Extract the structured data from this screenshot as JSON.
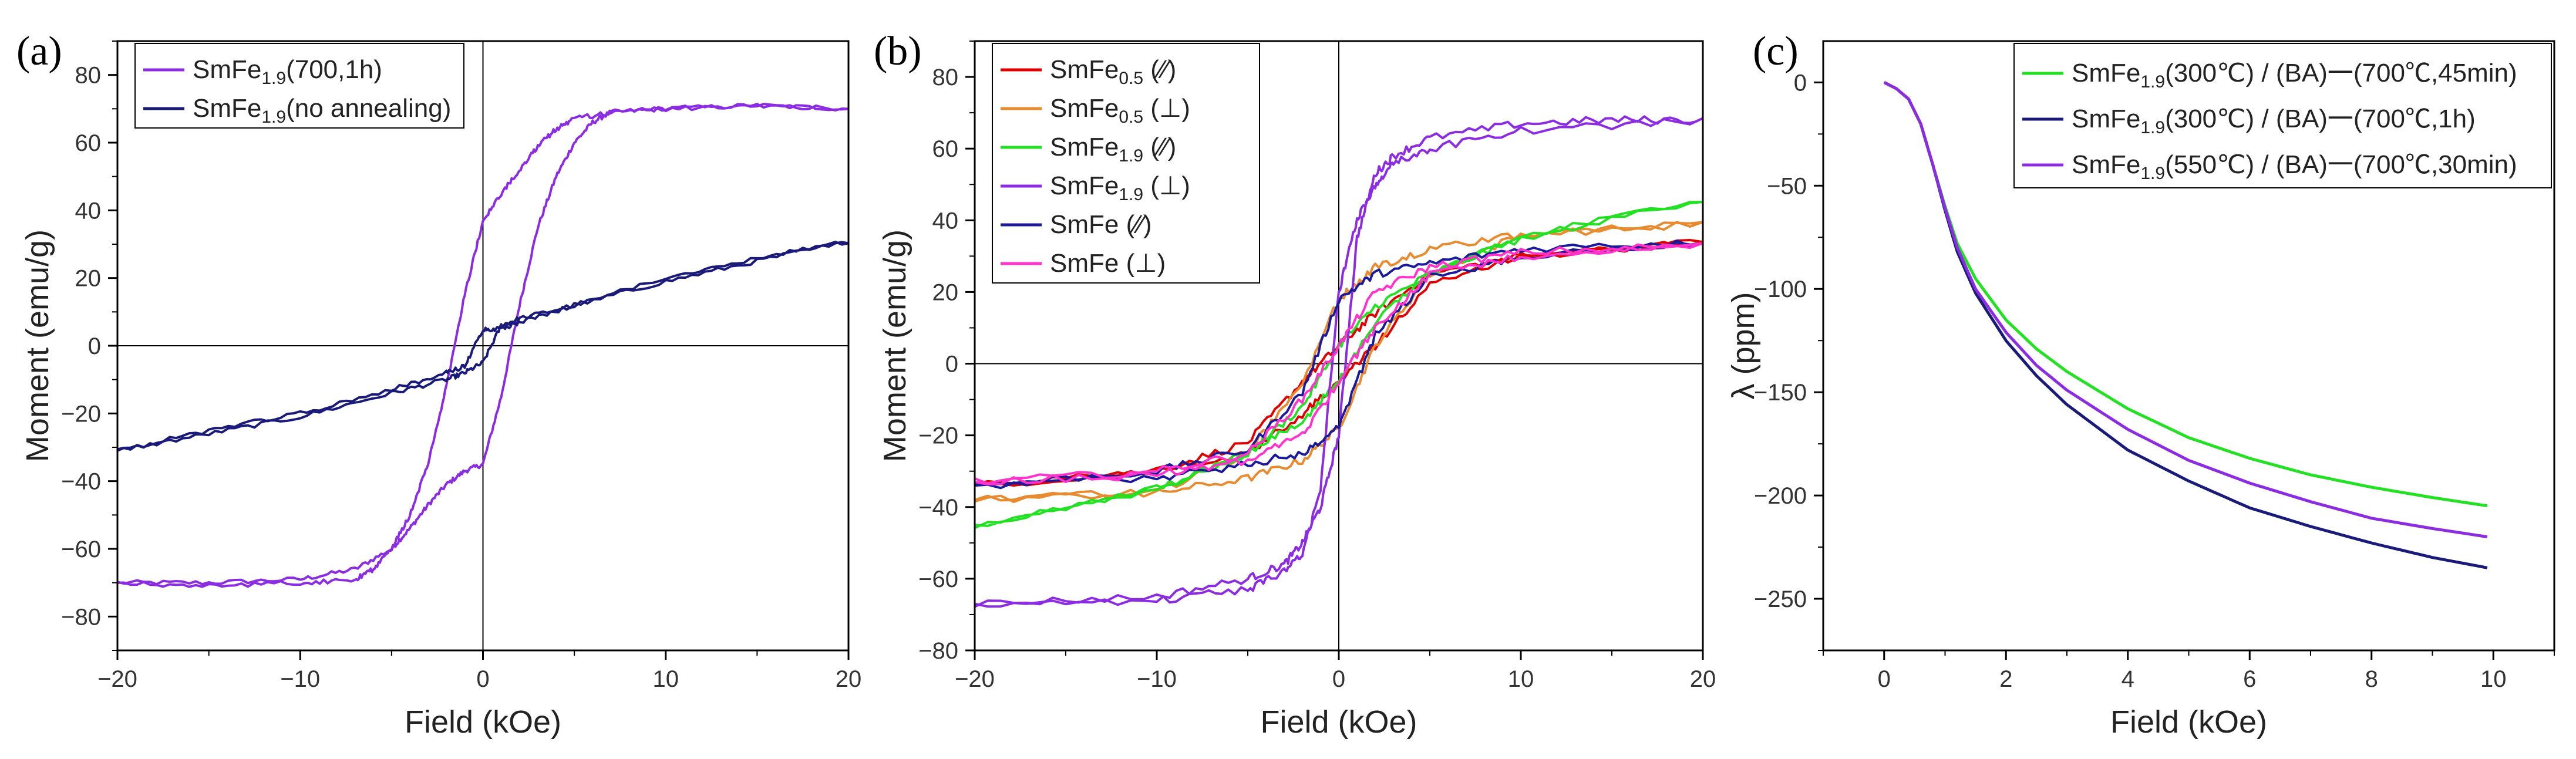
{
  "chart_data": [
    {
      "type": "line",
      "panel_label": "(a)",
      "xlabel": "Field (kOe)",
      "ylabel": "Moment (emu/g)",
      "xlim": [
        -20,
        20
      ],
      "ylim": [
        -90,
        90
      ],
      "xticks": [
        -20,
        -10,
        0,
        10,
        20
      ],
      "xtick_labels": [
        "−20",
        "−10",
        "0",
        "10",
        "20"
      ],
      "yticks": [
        -80,
        -60,
        -40,
        -20,
        0,
        20,
        40,
        60,
        80
      ],
      "ytick_labels": [
        "−80",
        "−60",
        "−40",
        "−20",
        "0",
        "20",
        "40",
        "60",
        "80"
      ],
      "zero_lines": true,
      "legend_position": "top-left",
      "series": [
        {
          "base": "SmFe",
          "sub": "1.9",
          "suffix": "(700,1h)",
          "color": "#8B2BE2",
          "x": [
            -20,
            -15,
            -10,
            -7,
            -5,
            -4,
            -3,
            -2,
            -1,
            0,
            1,
            2,
            3,
            4,
            5,
            6,
            7,
            10,
            15,
            20,
            15,
            10,
            7,
            5,
            4,
            3,
            2,
            1,
            0,
            -1,
            -2,
            -3,
            -4,
            -5,
            -6,
            -7,
            -10,
            -15,
            -20
          ],
          "y": [
            -70,
            -70,
            -69,
            -66,
            -60,
            -54,
            -47,
            -41,
            -37,
            -35,
            -15,
            12,
            35,
            50,
            60,
            66,
            69,
            70,
            71,
            70,
            71,
            70,
            69,
            67,
            64,
            59,
            52,
            45,
            37,
            15,
            -12,
            -35,
            -50,
            -60,
            -66,
            -69,
            -70,
            -71,
            -70
          ]
        },
        {
          "base": "SmFe",
          "sub": "1.9",
          "suffix": "(no annealing)",
          "color": "#1A1A7A",
          "x": [
            -20,
            -15,
            -10,
            -5,
            -2,
            -1,
            0,
            1,
            2,
            5,
            10,
            15,
            20,
            15,
            10,
            5,
            2,
            1,
            0,
            -1,
            -2,
            -5,
            -10,
            -15,
            -20
          ],
          "y": [
            -31,
            -26,
            -21,
            -14,
            -10,
            -8,
            -5,
            6,
            8,
            12,
            19,
            25,
            31,
            26,
            20,
            12,
            7,
            5,
            5,
            -6,
            -8,
            -13,
            -20,
            -25,
            -31
          ]
        }
      ]
    },
    {
      "type": "line",
      "panel_label": "(b)",
      "xlabel": "Field (kOe)",
      "ylabel": "Moment (emu/g)",
      "xlim": [
        -20,
        20
      ],
      "ylim": [
        -80,
        90
      ],
      "xticks": [
        -20,
        -10,
        0,
        10,
        20
      ],
      "xtick_labels": [
        "−20",
        "−10",
        "0",
        "10",
        "20"
      ],
      "yticks": [
        -80,
        -60,
        -40,
        -20,
        0,
        20,
        40,
        60,
        80
      ],
      "ytick_labels": [
        "−80",
        "−60",
        "−40",
        "−20",
        "0",
        "20",
        "40",
        "60",
        "80"
      ],
      "zero_lines": true,
      "legend_position": "top-left",
      "series": [
        {
          "base": "SmFe",
          "sub": "0.5",
          "suffix": " (∕∕)",
          "color": "#E00000",
          "x": [
            -20,
            -10,
            -5,
            -2,
            0,
            2,
            5,
            10,
            20,
            10,
            5,
            2,
            0,
            -2,
            -5,
            -10,
            -20
          ],
          "y": [
            -34,
            -30,
            -22,
            -5,
            5,
            14,
            25,
            30,
            34,
            30,
            22,
            5,
            -5,
            -14,
            -25,
            -30,
            -34
          ]
        },
        {
          "base": "SmFe",
          "sub": "0.5",
          "suffix": " (⊥)",
          "color": "#E88A2E",
          "x": [
            -20,
            -10,
            -5,
            -2,
            0,
            2,
            5,
            10,
            20,
            10,
            5,
            2,
            0,
            -2,
            -5,
            -10,
            -20
          ],
          "y": [
            -38,
            -36,
            -32,
            -27,
            -18,
            5,
            25,
            36,
            39,
            36,
            32,
            27,
            18,
            -5,
            -25,
            -36,
            -38
          ]
        },
        {
          "base": "SmFe",
          "sub": "1.9",
          "suffix": " (∕∕)",
          "color": "#22E022",
          "x": [
            -20,
            -10,
            -5,
            -2,
            0,
            2,
            5,
            10,
            20,
            10,
            5,
            2,
            0,
            -2,
            -5,
            -10,
            -20
          ],
          "y": [
            -45,
            -35,
            -25,
            -12,
            5,
            16,
            25,
            35,
            46,
            35,
            25,
            12,
            -5,
            -16,
            -25,
            -35,
            -45
          ]
        },
        {
          "base": "SmFe",
          "sub": "1.9",
          "suffix": " (⊥)",
          "color": "#8B2BE2",
          "x": [
            -20,
            -10,
            -5,
            -3,
            -2,
            -1,
            0,
            1,
            2,
            3,
            5,
            10,
            15,
            20,
            10,
            5,
            3,
            2,
            1,
            0,
            -1,
            -2,
            -3,
            -5,
            -10,
            -20
          ],
          "y": [
            -67,
            -65,
            -60,
            -56,
            -50,
            -40,
            -20,
            35,
            53,
            58,
            63,
            67,
            68,
            68,
            65,
            60,
            56,
            50,
            40,
            20,
            -35,
            -53,
            -58,
            -63,
            -66,
            -67
          ]
        },
        {
          "base": "SmFe",
          "sub": "",
          "suffix": " (∕∕)",
          "color": "#1A1A9A",
          "x": [
            -20,
            -10,
            -5,
            -2,
            0,
            2,
            5,
            10,
            20,
            10,
            5,
            2,
            0,
            -2,
            -5,
            -10,
            -20
          ],
          "y": [
            -34,
            -30,
            -24,
            -8,
            18,
            25,
            28,
            32,
            34,
            30,
            24,
            8,
            -18,
            -25,
            -28,
            -32,
            -34
          ]
        },
        {
          "base": "SmFe",
          "sub": "",
          "suffix": " (⊥)",
          "color": "#FF33CC",
          "x": [
            -20,
            -10,
            -5,
            -2,
            0,
            2,
            5,
            10,
            20,
            10,
            5,
            2,
            0,
            -2,
            -5,
            -10,
            -20
          ],
          "y": [
            -33,
            -30,
            -25,
            -10,
            5,
            20,
            27,
            31,
            33,
            30,
            25,
            10,
            -5,
            -20,
            -27,
            -31,
            -33
          ]
        }
      ]
    },
    {
      "type": "line",
      "panel_label": "(c)",
      "xlabel": "Field (kOe)",
      "ylabel": "λ (ppm)",
      "xlim": [
        -1,
        11
      ],
      "ylim": [
        -275,
        20
      ],
      "xticks": [
        0,
        2,
        4,
        6,
        8,
        10
      ],
      "xtick_labels": [
        "0",
        "2",
        "4",
        "6",
        "8",
        "10"
      ],
      "yticks": [
        -250,
        -200,
        -150,
        -100,
        -50,
        0
      ],
      "ytick_labels": [
        "−250",
        "−200",
        "−150",
        "−100",
        "−50",
        "0"
      ],
      "zero_lines": false,
      "legend_position": "top-right",
      "series": [
        {
          "base": "SmFe",
          "sub": "1.9",
          "suffix": "(300℃) / (BA)一(700℃,45min)",
          "color": "#22E022",
          "x": [
            0,
            0.2,
            0.4,
            0.6,
            0.8,
            1.0,
            1.2,
            1.5,
            2,
            2.5,
            3,
            4,
            5,
            6,
            7,
            8,
            9,
            9.9
          ],
          "y": [
            0,
            -3,
            -8,
            -20,
            -40,
            -60,
            -78,
            -95,
            -115,
            -129,
            -140,
            -158,
            -172,
            -182,
            -190,
            -196,
            -201,
            -205
          ]
        },
        {
          "base": "SmFe",
          "sub": "1.9",
          "suffix": "(300℃) / (BA)一(700℃,1h)",
          "color": "#1A1A7A",
          "x": [
            0,
            0.2,
            0.4,
            0.6,
            0.8,
            1.0,
            1.2,
            1.5,
            2,
            2.5,
            3,
            4,
            5,
            6,
            7,
            8,
            9,
            9.9
          ],
          "y": [
            0,
            -3,
            -8,
            -20,
            -40,
            -62,
            -82,
            -102,
            -125,
            -142,
            -156,
            -178,
            -193,
            -206,
            -215,
            -223,
            -230,
            -235
          ]
        },
        {
          "base": "SmFe",
          "sub": "1.9",
          "suffix": "(550℃) / (BA)一(700℃,30min)",
          "color": "#8B2BE2",
          "x": [
            0,
            0.2,
            0.4,
            0.6,
            0.8,
            1.0,
            1.2,
            1.5,
            2,
            2.5,
            3,
            4,
            5,
            6,
            7,
            8,
            9,
            9.9
          ],
          "y": [
            0,
            -3,
            -8,
            -20,
            -40,
            -61,
            -80,
            -100,
            -121,
            -137,
            -149,
            -168,
            -183,
            -194,
            -203,
            -211,
            -216,
            -220
          ]
        }
      ]
    }
  ]
}
